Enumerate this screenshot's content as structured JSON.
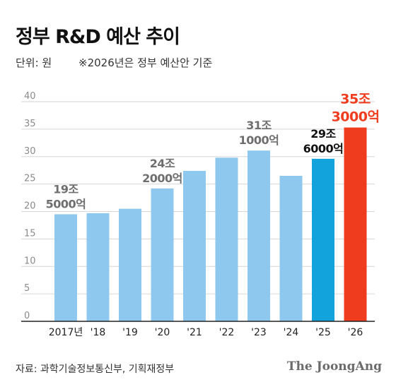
{
  "header": {
    "title": "정부 R&D 예산 추이",
    "unit_note": "단위: 원",
    "basis_note": "※2026년은 정부 예산안 기준"
  },
  "footer": {
    "source": "자료: 과학기술정보통신부, 기획재정부",
    "brand": "The JoongAng"
  },
  "colors": {
    "default_bar": "#8ec8ee",
    "highlight_2025": "#13a3dc",
    "highlight_2026": "#f03c1e",
    "label_gray": "#6e6e6e",
    "label_dark": "#111111",
    "label_red": "#f03c1e",
    "grid": "#d6d6d6"
  },
  "chart_data": {
    "type": "bar",
    "title": "정부 R&D 예산 추이",
    "unit": "조 원",
    "categories": [
      "2017년",
      "'18",
      "'19",
      "'20",
      "'21",
      "'22",
      "'23",
      "'24",
      "'25",
      "'26"
    ],
    "values": [
      19.5,
      19.7,
      20.5,
      24.2,
      27.4,
      29.8,
      31.1,
      26.5,
      29.6,
      35.3
    ],
    "ylim": [
      0,
      40
    ],
    "yticks": [
      0,
      5,
      10,
      15,
      20,
      25,
      30,
      35,
      40
    ],
    "grid": true,
    "bar_colors": [
      "default",
      "default",
      "default",
      "default",
      "default",
      "default",
      "default",
      "default",
      "highlight_2025",
      "highlight_2026"
    ],
    "annotations": [
      {
        "index": 0,
        "lines": [
          "19조",
          "5000억"
        ],
        "style": "gray"
      },
      {
        "index": 3,
        "lines": [
          "24조",
          "2000억"
        ],
        "style": "gray"
      },
      {
        "index": 6,
        "lines": [
          "31조",
          "1000억"
        ],
        "style": "gray"
      },
      {
        "index": 8,
        "lines": [
          "29조",
          "6000억"
        ],
        "style": "dark"
      },
      {
        "index": 9,
        "lines": [
          "35조",
          "3000억"
        ],
        "style": "red"
      }
    ]
  }
}
